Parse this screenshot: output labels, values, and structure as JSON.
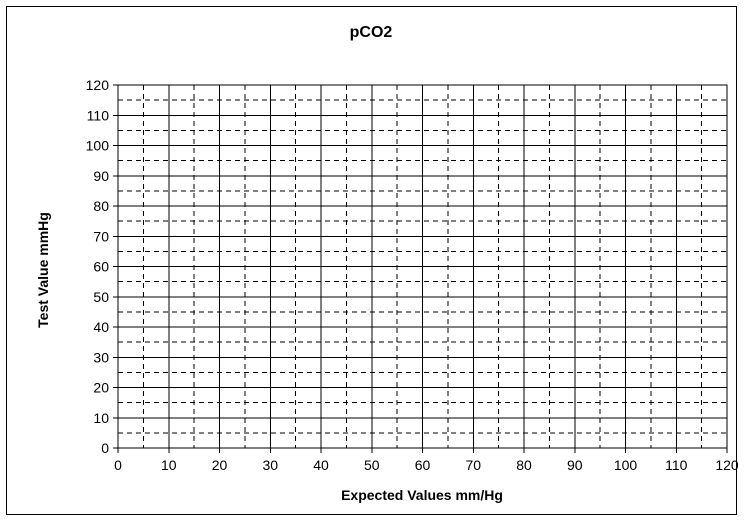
{
  "chart_data": {
    "type": "scatter",
    "title": "pCO2",
    "xlabel": "Expected Values mm/Hg",
    "ylabel": "Test Value mmHg",
    "xlim": [
      0,
      120
    ],
    "ylim": [
      0,
      120
    ],
    "x_major_step": 10,
    "y_major_step": 10,
    "x_minor_step": 5,
    "y_minor_step": 5,
    "grid": true,
    "x_ticks": [
      "0",
      "10",
      "20",
      "30",
      "40",
      "50",
      "60",
      "70",
      "80",
      "90",
      "100",
      "110",
      "120"
    ],
    "y_ticks": [
      "0",
      "10",
      "20",
      "30",
      "40",
      "50",
      "60",
      "70",
      "80",
      "90",
      "100",
      "110",
      "120"
    ],
    "series": [],
    "colors": {
      "grid_major": "#000000",
      "grid_minor": "#000000",
      "border": "#000000"
    }
  }
}
